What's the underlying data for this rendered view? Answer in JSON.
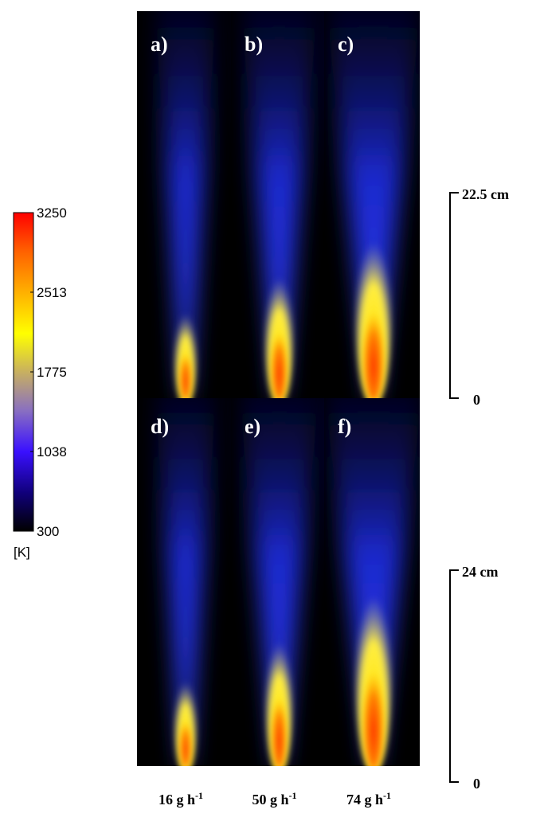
{
  "colorbar": {
    "ticks": [
      3250,
      2513,
      1775,
      1038,
      300
    ],
    "unit": "[K]"
  },
  "panels": [
    "a)",
    "b)",
    "c)",
    "d)",
    "e)",
    "f)"
  ],
  "scale_bars": [
    {
      "top": "22.5 cm",
      "bottom": "0"
    },
    {
      "top": "24 cm",
      "bottom": "0"
    }
  ],
  "columns": [
    {
      "text": "16 g h",
      "sup": "-1"
    },
    {
      "text": "50 g h",
      "sup": "-1"
    },
    {
      "text": "74 g h",
      "sup": "-1"
    }
  ]
}
